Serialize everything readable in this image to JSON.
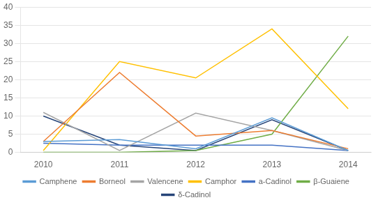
{
  "chart_data": {
    "type": "line",
    "x": [
      2010,
      2011,
      2012,
      2013,
      2014
    ],
    "series": [
      {
        "name": "Camphene",
        "color": "#5B9BD5",
        "values": [
          3.0,
          3.5,
          1.0,
          9.5,
          0.5
        ]
      },
      {
        "name": "Borneol",
        "color": "#ED7D31",
        "values": [
          3.0,
          22.0,
          4.5,
          6.0,
          1.0
        ]
      },
      {
        "name": "Valencene",
        "color": "#A5A5A5",
        "values": [
          11.0,
          0.5,
          10.8,
          6.0,
          0.5
        ]
      },
      {
        "name": "Camphor",
        "color": "#FFC000",
        "values": [
          0.5,
          25.0,
          20.5,
          34.0,
          12.0
        ]
      },
      {
        "name": "a-Cadinol",
        "color": "#4472C4",
        "values": [
          2.5,
          2.0,
          2.0,
          2.0,
          0.5
        ]
      },
      {
        "name": "β-Guaiene",
        "color": "#70AD47",
        "values": [
          0.0,
          0.0,
          0.5,
          5.0,
          32.0
        ]
      },
      {
        "name": "δ-Cadinol",
        "color": "#264478",
        "values": [
          10.0,
          2.0,
          0.5,
          9.0,
          0.5
        ]
      }
    ],
    "xlim": [
      2009.7,
      2014.3
    ],
    "xticks": [
      2010,
      2011,
      2012,
      2013,
      2014
    ],
    "ylim": [
      0,
      40
    ],
    "yticks": [
      0,
      5,
      10,
      15,
      20,
      25,
      30,
      35,
      40
    ],
    "grid": "y",
    "legend": "bottom"
  }
}
